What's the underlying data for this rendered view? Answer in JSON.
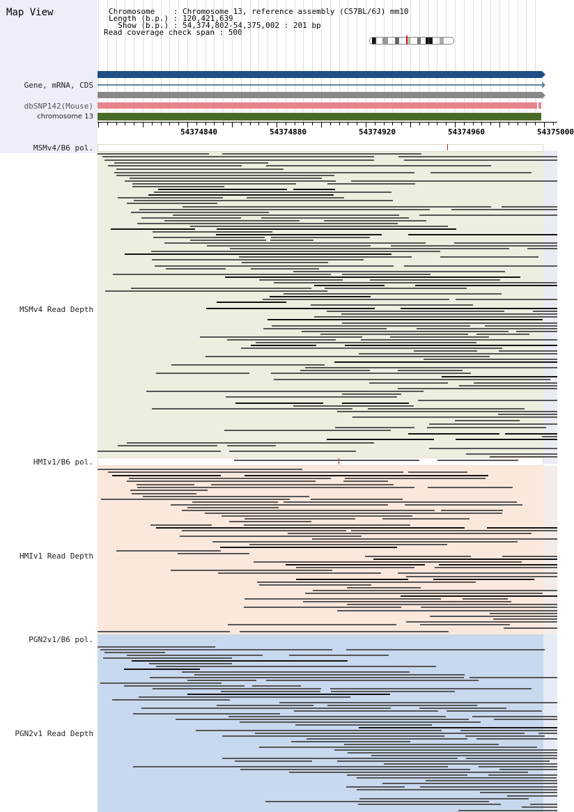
{
  "header": {
    "title": "Map View"
  },
  "info": {
    "chromosome_line": "Chromosome    : Chromosome 13, reference assembly (C57BL/6J) mm10",
    "length_line": "Length (b.p.) : 120,421,639",
    "show_line": "  Show (b.p.) : 54,374,802-54,375,002 : 201 bp",
    "coverage_line": "Read coverage check span : 500"
  },
  "tracks": {
    "gene_label": "Gene, mRNA, CDS",
    "dbsnp_label": "dbSNP142(Mouse)",
    "chrom_label": "chromosome 13"
  },
  "axis": {
    "ticks": [
      "54374840",
      "54374880",
      "54374920",
      "54374960",
      "54375000"
    ]
  },
  "panels": [
    {
      "pol_label": "MSMv4/B6 pol.",
      "depth_label": "MSMv4 Read Depth"
    },
    {
      "pol_label": "HMIv1/B6 pol.",
      "depth_label": "HMIv1 Read Depth"
    },
    {
      "pol_label": "PGN2v1/B6 pol.",
      "depth_label": "PGN2v1 Read Depth"
    }
  ],
  "colors": {
    "gene_blue": "#1f4e84",
    "snp_pink": "#e8848c",
    "chrom_green": "#4a6a2a",
    "msm_bg": "#eaefdf",
    "hmi_bg": "#fbe8dc",
    "pgn_bg": "#c8d8ee",
    "read_dark": "#555555",
    "read_black": "#111111"
  }
}
